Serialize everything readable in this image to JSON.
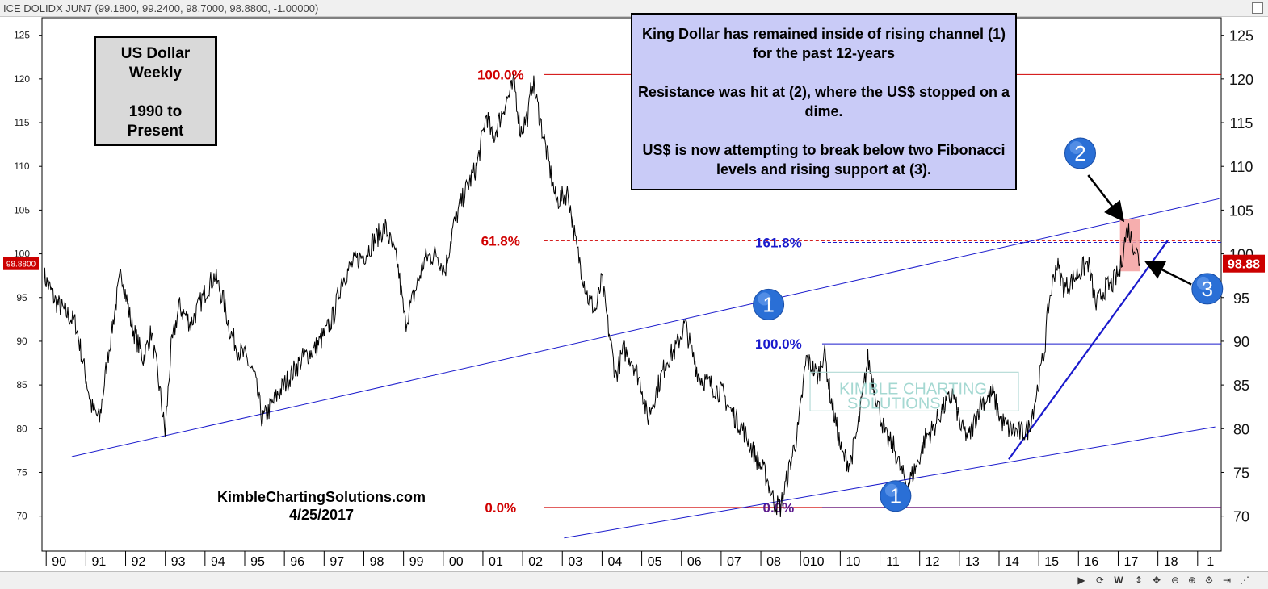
{
  "header": {
    "symbol": "ICE DOLIDX JUN7",
    "ohlc": "(99.1800, 99.2400, 98.7000, 98.8800, -1.00000)"
  },
  "title_box": {
    "lines": [
      "US Dollar",
      "Weekly",
      "",
      "1990 to",
      "Present"
    ]
  },
  "note_box": {
    "paragraphs": [
      "King Dollar has remained inside of rising channel (1) for the past 12-years",
      "Resistance was hit at (2), where the US$ stopped on a dime.",
      "US$ is now attempting to break below two Fibonacci levels and rising support at (3)."
    ]
  },
  "watermark": {
    "line1": "KIMBLE CHARTING",
    "line2": "SOLUTIONS"
  },
  "credit": {
    "site": "KimbleChartingSolutions.com",
    "date": "4/25/2017"
  },
  "price_tag": {
    "left": "98.8800",
    "right": "98.88"
  },
  "bottom_controls": {
    "w": "W"
  },
  "colors": {
    "fib_red": "#d00000",
    "channel_blue": "#1a1acc",
    "price": "#000000",
    "highlight": "#f4a0a0"
  },
  "chart_data": {
    "type": "line",
    "frequency": "weekly",
    "ylim": [
      66,
      127
    ],
    "xlim": [
      1989.65,
      2019.35
    ],
    "y_ticks": [
      70,
      75,
      80,
      85,
      90,
      95,
      100,
      105,
      110,
      115,
      120,
      125
    ],
    "x_ticks": [
      {
        "x": 1990,
        "label": "90"
      },
      {
        "x": 1991,
        "label": "91"
      },
      {
        "x": 1992,
        "label": "92"
      },
      {
        "x": 1993,
        "label": "93"
      },
      {
        "x": 1994,
        "label": "94"
      },
      {
        "x": 1995,
        "label": "95"
      },
      {
        "x": 1996,
        "label": "96"
      },
      {
        "x": 1997,
        "label": "97"
      },
      {
        "x": 1998,
        "label": "98"
      },
      {
        "x": 1999,
        "label": "99"
      },
      {
        "x": 2000,
        "label": "00"
      },
      {
        "x": 2001,
        "label": "01"
      },
      {
        "x": 2002,
        "label": "02"
      },
      {
        "x": 2003,
        "label": "03"
      },
      {
        "x": 2004,
        "label": "04"
      },
      {
        "x": 2005,
        "label": "05"
      },
      {
        "x": 2006,
        "label": "06"
      },
      {
        "x": 2007,
        "label": "07"
      },
      {
        "x": 2008,
        "label": "08"
      },
      {
        "x": 2009,
        "label": "010"
      },
      {
        "x": 2010,
        "label": "10"
      },
      {
        "x": 2011,
        "label": "11"
      },
      {
        "x": 2012,
        "label": "12"
      },
      {
        "x": 2013,
        "label": "13"
      },
      {
        "x": 2014,
        "label": "14"
      },
      {
        "x": 2015,
        "label": "15"
      },
      {
        "x": 2016,
        "label": "16"
      },
      {
        "x": 2017,
        "label": "17"
      },
      {
        "x": 2018,
        "label": "18"
      },
      {
        "x": 2019,
        "label": "1"
      }
    ],
    "series": [
      {
        "points": [
          [
            1989.7,
            97.5
          ],
          [
            1990.0,
            94.5
          ],
          [
            1990.3,
            93
          ],
          [
            1990.5,
            92
          ],
          [
            1990.75,
            86
          ],
          [
            1990.9,
            82.5
          ],
          [
            1991.1,
            81
          ],
          [
            1991.3,
            88
          ],
          [
            1991.5,
            94
          ],
          [
            1991.65,
            98
          ],
          [
            1991.9,
            92
          ],
          [
            1992.2,
            88
          ],
          [
            1992.4,
            91
          ],
          [
            1992.6,
            85
          ],
          [
            1992.75,
            79.5
          ],
          [
            1992.9,
            89
          ],
          [
            1993.1,
            94
          ],
          [
            1993.4,
            92
          ],
          [
            1993.6,
            94
          ],
          [
            1993.8,
            96
          ],
          [
            1994.0,
            97.5
          ],
          [
            1994.2,
            95
          ],
          [
            1994.4,
            91
          ],
          [
            1994.6,
            89
          ],
          [
            1994.8,
            88
          ],
          [
            1995.0,
            86
          ],
          [
            1995.2,
            81
          ],
          [
            1995.35,
            82
          ],
          [
            1995.6,
            84
          ],
          [
            1995.9,
            86
          ],
          [
            1996.2,
            88
          ],
          [
            1996.5,
            89
          ],
          [
            1996.8,
            91
          ],
          [
            1997.0,
            93
          ],
          [
            1997.2,
            97
          ],
          [
            1997.5,
            99
          ],
          [
            1997.8,
            100
          ],
          [
            1998.0,
            101.5
          ],
          [
            1998.3,
            103
          ],
          [
            1998.6,
            99
          ],
          [
            1998.8,
            92
          ],
          [
            1999.0,
            95
          ],
          [
            1999.3,
            99.5
          ],
          [
            1999.6,
            100
          ],
          [
            1999.8,
            98
          ],
          [
            2000.0,
            103
          ],
          [
            2000.3,
            107
          ],
          [
            2000.6,
            110
          ],
          [
            2000.85,
            116
          ],
          [
            2001.0,
            113
          ],
          [
            2001.3,
            117
          ],
          [
            2001.55,
            119.5
          ],
          [
            2001.7,
            114
          ],
          [
            2001.9,
            116
          ],
          [
            2002.0,
            120
          ],
          [
            2002.3,
            113
          ],
          [
            2002.6,
            106
          ],
          [
            2002.9,
            107
          ],
          [
            2003.1,
            101
          ],
          [
            2003.4,
            95
          ],
          [
            2003.6,
            93.5
          ],
          [
            2003.75,
            97
          ],
          [
            2003.9,
            92
          ],
          [
            2004.1,
            86
          ],
          [
            2004.3,
            89
          ],
          [
            2004.5,
            88
          ],
          [
            2004.75,
            85
          ],
          [
            2004.9,
            81
          ],
          [
            2005.1,
            84
          ],
          [
            2005.4,
            88
          ],
          [
            2005.6,
            89
          ],
          [
            2005.85,
            92
          ],
          [
            2006.0,
            89
          ],
          [
            2006.2,
            86
          ],
          [
            2006.5,
            85
          ],
          [
            2006.8,
            84
          ],
          [
            2007.0,
            82
          ],
          [
            2007.3,
            80
          ],
          [
            2007.6,
            77
          ],
          [
            2007.9,
            74.5
          ],
          [
            2008.1,
            71.5
          ],
          [
            2008.25,
            71
          ],
          [
            2008.4,
            74
          ],
          [
            2008.7,
            80
          ],
          [
            2008.9,
            88
          ],
          [
            2009.2,
            86
          ],
          [
            2009.35,
            89
          ],
          [
            2009.5,
            84
          ],
          [
            2009.8,
            77
          ],
          [
            2010.0,
            76
          ],
          [
            2010.2,
            80
          ],
          [
            2010.45,
            88
          ],
          [
            2010.7,
            83
          ],
          [
            2010.9,
            79
          ],
          [
            2011.1,
            78
          ],
          [
            2011.3,
            75
          ],
          [
            2011.45,
            73.5
          ],
          [
            2011.7,
            76
          ],
          [
            2011.9,
            79
          ],
          [
            2012.1,
            80
          ],
          [
            2012.3,
            82
          ],
          [
            2012.6,
            84
          ],
          [
            2012.8,
            80
          ],
          [
            2013.0,
            79
          ],
          [
            2013.3,
            83
          ],
          [
            2013.6,
            84
          ],
          [
            2013.8,
            81
          ],
          [
            2014.0,
            80
          ],
          [
            2014.3,
            79.5
          ],
          [
            2014.5,
            80
          ],
          [
            2014.7,
            84
          ],
          [
            2014.9,
            89
          ],
          [
            2015.0,
            94
          ],
          [
            2015.2,
            99
          ],
          [
            2015.4,
            96
          ],
          [
            2015.6,
            97
          ],
          [
            2015.8,
            98
          ],
          [
            2016.0,
            99
          ],
          [
            2016.2,
            94
          ],
          [
            2016.4,
            96
          ],
          [
            2016.6,
            96.5
          ],
          [
            2016.8,
            98
          ],
          [
            2016.9,
            101
          ],
          [
            2017.0,
            103
          ],
          [
            2017.1,
            101.5
          ],
          [
            2017.2,
            100.5
          ],
          [
            2017.3,
            98.88
          ]
        ]
      }
    ],
    "lines": [
      {
        "label": "",
        "from": [
          1990.4,
          76.8
        ],
        "to": [
          2019.3,
          106.3
        ],
        "color": "#1a1acc"
      },
      {
        "label": "",
        "from": [
          2002.8,
          67.5
        ],
        "to": [
          2019.2,
          80.2
        ],
        "color": "#1a1acc"
      },
      {
        "label": "",
        "from": [
          2014.0,
          76.5
        ],
        "to": [
          2018.0,
          101.5
        ],
        "color": "#1a1acc"
      }
    ],
    "fib_levels": [
      {
        "label": "100.0%",
        "value": 120.5,
        "x_from": 2002.3,
        "color": "#d00000",
        "dashed": false,
        "label_x": 2001.2
      },
      {
        "label": "61.8%",
        "value": 101.5,
        "x_from": 2002.3,
        "color": "#d00000",
        "dashed": true,
        "label_x": 2001.2
      },
      {
        "label": "0.0%",
        "value": 71.0,
        "x_from": 2002.3,
        "color": "#d00000",
        "dashed": false,
        "label_x": 2001.2
      },
      {
        "label": "161.8%",
        "value": 101.3,
        "x_from": 2009.3,
        "color": "#1a1acc",
        "dashed": true,
        "label_x": 2008.2
      },
      {
        "label": "100.0%",
        "value": 89.7,
        "x_from": 2009.3,
        "color": "#1a1acc",
        "dashed": false,
        "label_x": 2008.2
      },
      {
        "label": "0.0%",
        "value": 71.0,
        "x_from": 2009.3,
        "color": "#5b1a8c",
        "dashed": false,
        "label_x": 2008.2
      }
    ],
    "highlight": {
      "x_from": 2016.8,
      "x_to": 2017.3,
      "y_from": 98,
      "y_to": 104
    },
    "markers": [
      {
        "label": "1",
        "x": 2007.95,
        "y": 94.2
      },
      {
        "label": "1",
        "x": 2011.15,
        "y": 72.3
      },
      {
        "label": "2",
        "x": 2015.8,
        "y": 111.5
      },
      {
        "label": "3",
        "x": 2019.0,
        "y": 96.0
      }
    ],
    "arrows": [
      {
        "from": [
          2016.0,
          109.0
        ],
        "to": [
          2016.85,
          104.0
        ]
      },
      {
        "from": [
          2018.6,
          96.5
        ],
        "to": [
          2017.5,
          99.0
        ]
      }
    ]
  }
}
